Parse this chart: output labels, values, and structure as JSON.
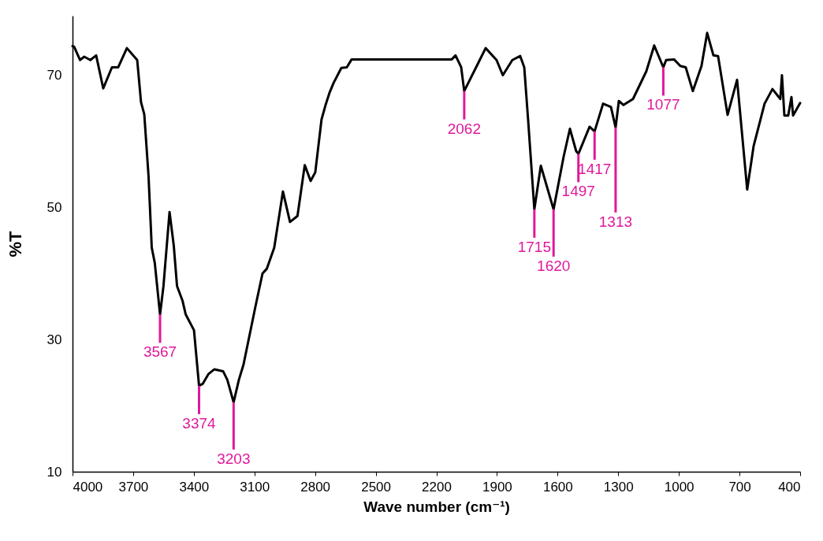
{
  "chart_data": {
    "type": "line",
    "xlabel": "Wave number (cm⁻¹)",
    "ylabel": "%T",
    "x": [
      4000,
      3992,
      3963,
      3942,
      3912,
      3883,
      3848,
      3805,
      3774,
      3731,
      3680,
      3661,
      3645,
      3624,
      3608,
      3593,
      3567,
      3550,
      3520,
      3499,
      3483,
      3456,
      3440,
      3399,
      3374,
      3356,
      3327,
      3298,
      3255,
      3234,
      3203,
      3177,
      3154,
      3095,
      3060,
      3039,
      3002,
      2959,
      2924,
      2887,
      2851,
      2822,
      2799,
      2768,
      2748,
      2729,
      2709,
      2670,
      2643,
      2619,
      2502,
      2124,
      2105,
      2077,
      2062,
      1995,
      1956,
      1902,
      1871,
      1824,
      1785,
      1765,
      1746,
      1715,
      1683,
      1620,
      1570,
      1539,
      1508,
      1497,
      1442,
      1417,
      1375,
      1336,
      1313,
      1297,
      1274,
      1227,
      1161,
      1122,
      1077,
      1063,
      1024,
      993,
      966,
      931,
      888,
      860,
      829,
      806,
      759,
      712,
      662,
      630,
      576,
      537,
      498,
      490,
      478,
      459,
      443,
      435,
      400
    ],
    "series": [
      {
        "color": "#000000",
        "values": [
          74.4,
          74.3,
          72.3,
          72.8,
          72.3,
          73.0,
          68.0,
          71.2,
          71.2,
          74.1,
          72.3,
          65.9,
          64.1,
          54.8,
          43.9,
          41.6,
          33.8,
          38.1,
          49.3,
          44.2,
          38.1,
          35.9,
          33.8,
          31.4,
          23.0,
          23.3,
          24.8,
          25.5,
          25.2,
          23.9,
          20.5,
          23.9,
          26.2,
          35.0,
          40.0,
          40.7,
          43.9,
          52.4,
          47.8,
          48.7,
          56.4,
          54.0,
          55.3,
          63.3,
          65.5,
          67.3,
          68.8,
          71.1,
          71.2,
          72.4,
          72.4,
          72.4,
          73.0,
          71.2,
          67.6,
          71.7,
          74.1,
          72.3,
          70.0,
          72.3,
          72.9,
          71.2,
          63.3,
          49.7,
          56.3,
          49.7,
          57.7,
          61.9,
          58.5,
          58.1,
          62.2,
          61.5,
          65.7,
          65.2,
          62.1,
          66.1,
          65.5,
          66.4,
          70.6,
          74.5,
          71.2,
          72.3,
          72.4,
          71.4,
          71.2,
          67.6,
          71.4,
          76.4,
          73.0,
          72.9,
          64.0,
          69.3,
          52.7,
          59.3,
          65.7,
          67.9,
          66.4,
          70.0,
          63.9,
          63.9,
          66.7,
          63.9,
          65.8
        ]
      }
    ],
    "xlim": [
      4000,
      400
    ],
    "xticks": [
      4000,
      3700,
      3400,
      3100,
      2800,
      2500,
      2200,
      1900,
      1600,
      1300,
      1000,
      700,
      400
    ],
    "ylim": [
      10,
      79
    ],
    "yticks": [
      10,
      30,
      50,
      70
    ],
    "grid": false,
    "marker": "none",
    "line_style": "solid",
    "annotations": [
      {
        "text": "3567",
        "x": 3567,
        "y": 33.8
      },
      {
        "text": "3374",
        "x": 3374,
        "y": 23.0
      },
      {
        "text": "3203",
        "x": 3203,
        "y": 20.5
      },
      {
        "text": "2062",
        "x": 2062,
        "y": 67.6
      },
      {
        "text": "1715",
        "x": 1715,
        "y": 49.7
      },
      {
        "text": "1620",
        "x": 1620,
        "y": 49.7
      },
      {
        "text": "1497",
        "x": 1497,
        "y": 58.1
      },
      {
        "text": "1417",
        "x": 1417,
        "y": 61.5
      },
      {
        "text": "1313",
        "x": 1313,
        "y": 62.1
      },
      {
        "text": "1077",
        "x": 1077,
        "y": 71.2
      }
    ]
  }
}
